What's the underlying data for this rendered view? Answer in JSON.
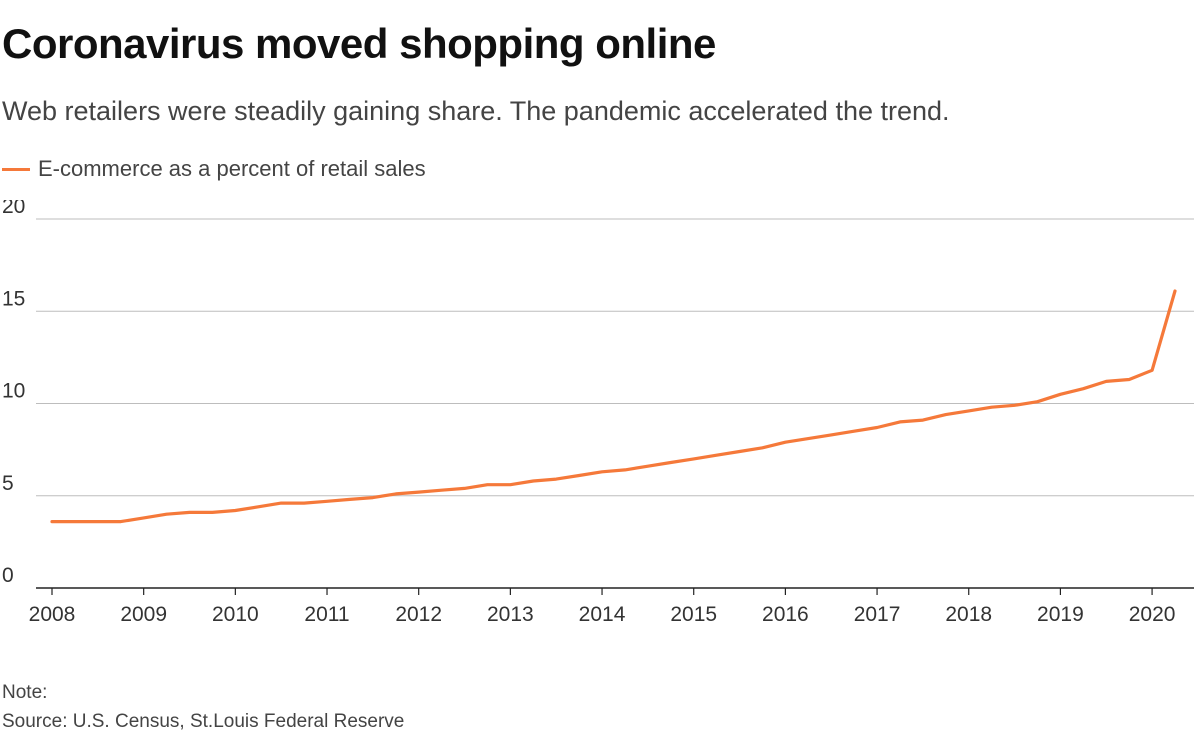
{
  "title": "Coronavirus moved shopping online",
  "subtitle": "Web retailers were steadily gaining share. The pandemic accelerated the trend.",
  "note": "Note:",
  "source": "Source: U.S. Census, St.Louis Federal Reserve",
  "colors": {
    "line": "#f5793a",
    "grid": "#bdbdbd",
    "axis": "#222222",
    "tick_text": "#333333"
  },
  "chart_data": {
    "type": "line",
    "xlabel": "",
    "ylabel": "",
    "xlim": [
      2008,
      2020.3
    ],
    "ylim": [
      0,
      20
    ],
    "y_ticks": [
      0,
      5,
      10,
      15,
      20
    ],
    "x_ticks": [
      2008,
      2009,
      2010,
      2011,
      2012,
      2013,
      2014,
      2015,
      2016,
      2017,
      2018,
      2019,
      2020
    ],
    "grid": true,
    "legend_placement": "top-left",
    "series": [
      {
        "name": "E-commerce as a percent of retail sales",
        "x": [
          2008.0,
          2008.25,
          2008.5,
          2008.75,
          2009.0,
          2009.25,
          2009.5,
          2009.75,
          2010.0,
          2010.25,
          2010.5,
          2010.75,
          2011.0,
          2011.25,
          2011.5,
          2011.75,
          2012.0,
          2012.25,
          2012.5,
          2012.75,
          2013.0,
          2013.25,
          2013.5,
          2013.75,
          2014.0,
          2014.25,
          2014.5,
          2014.75,
          2015.0,
          2015.25,
          2015.5,
          2015.75,
          2016.0,
          2016.25,
          2016.5,
          2016.75,
          2017.0,
          2017.25,
          2017.5,
          2017.75,
          2018.0,
          2018.25,
          2018.5,
          2018.75,
          2019.0,
          2019.25,
          2019.5,
          2019.75,
          2020.0,
          2020.25
        ],
        "values": [
          3.6,
          3.6,
          3.6,
          3.6,
          3.8,
          4.0,
          4.1,
          4.1,
          4.2,
          4.4,
          4.6,
          4.6,
          4.7,
          4.8,
          4.9,
          5.1,
          5.2,
          5.3,
          5.4,
          5.6,
          5.6,
          5.8,
          5.9,
          6.1,
          6.3,
          6.4,
          6.6,
          6.8,
          7.0,
          7.2,
          7.4,
          7.6,
          7.9,
          8.1,
          8.3,
          8.5,
          8.7,
          9.0,
          9.1,
          9.4,
          9.6,
          9.8,
          9.9,
          10.1,
          10.5,
          10.8,
          11.2,
          11.3,
          11.8,
          16.1
        ]
      }
    ]
  }
}
